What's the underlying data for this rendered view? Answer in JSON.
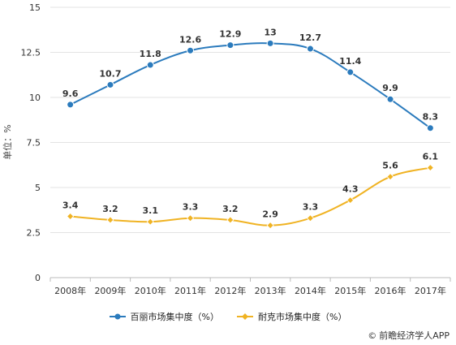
{
  "chart_data": {
    "type": "line",
    "ylabel": "单位：%",
    "ylim": [
      0,
      15
    ],
    "yticks": [
      "0",
      "2.5",
      "5",
      "7.5",
      "10",
      "12.5",
      "15"
    ],
    "categories": [
      "2008年",
      "2009年",
      "2010年",
      "2011年",
      "2012年",
      "2013年",
      "2014年",
      "2015年",
      "2016年",
      "2017年"
    ],
    "series": [
      {
        "name": "百丽市场集中度（%）",
        "color": "#2b7bbd",
        "values": [
          9.6,
          10.7,
          11.8,
          12.6,
          12.9,
          13,
          12.7,
          11.4,
          9.9,
          8.3
        ],
        "labels": [
          "9.6",
          "10.7",
          "11.8",
          "12.6",
          "12.9",
          "13",
          "12.7",
          "11.4",
          "9.9",
          "8.3"
        ]
      },
      {
        "name": "耐克市场集中度（%）",
        "color": "#f0b323",
        "values": [
          3.4,
          3.2,
          3.1,
          3.3,
          3.2,
          2.9,
          3.3,
          4.3,
          5.6,
          6.1
        ],
        "labels": [
          "3.4",
          "3.2",
          "3.1",
          "3.3",
          "3.2",
          "2.9",
          "3.3",
          "4.3",
          "5.6",
          "6.1"
        ]
      }
    ],
    "grid": true,
    "legend_position": "bottom"
  },
  "source": {
    "text": "前瞻经济学人APP",
    "icon": "copyright-icon"
  }
}
